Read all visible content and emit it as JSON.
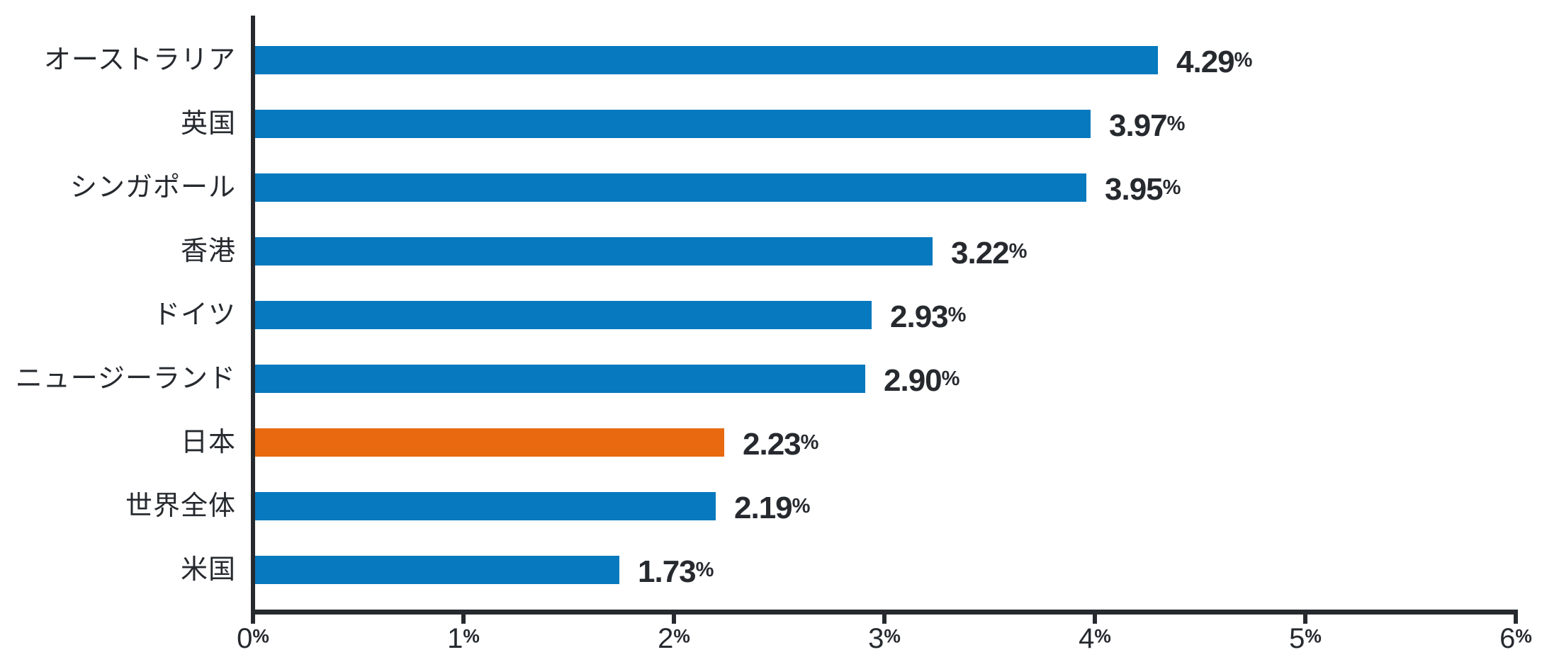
{
  "chart_data": {
    "type": "bar",
    "orientation": "horizontal",
    "title": "",
    "xlabel": "",
    "ylabel": "",
    "categories": [
      "オーストラリア",
      "英国",
      "シンガポール",
      "香港",
      "ドイツ",
      "ニュージーランド",
      "日本",
      "世界全体",
      "米国"
    ],
    "values": [
      4.29,
      3.97,
      3.95,
      3.22,
      2.93,
      2.9,
      2.23,
      2.19,
      1.73
    ],
    "value_labels": [
      "4.29%",
      "3.97%",
      "3.95%",
      "3.22%",
      "2.93%",
      "2.90%",
      "2.23%",
      "2.19%",
      "1.73%"
    ],
    "highlight_category": "日本",
    "highlight_index": 6,
    "x_ticks": [
      "0%",
      "1%",
      "2%",
      "3%",
      "4%",
      "5%",
      "6%"
    ],
    "xlim": [
      0,
      6
    ],
    "grid": false,
    "legend": null,
    "colors": {
      "bar": "#0779BE",
      "highlight_bar": "#E8690F",
      "axis": "#262A2F",
      "text": "#262A2F"
    }
  }
}
